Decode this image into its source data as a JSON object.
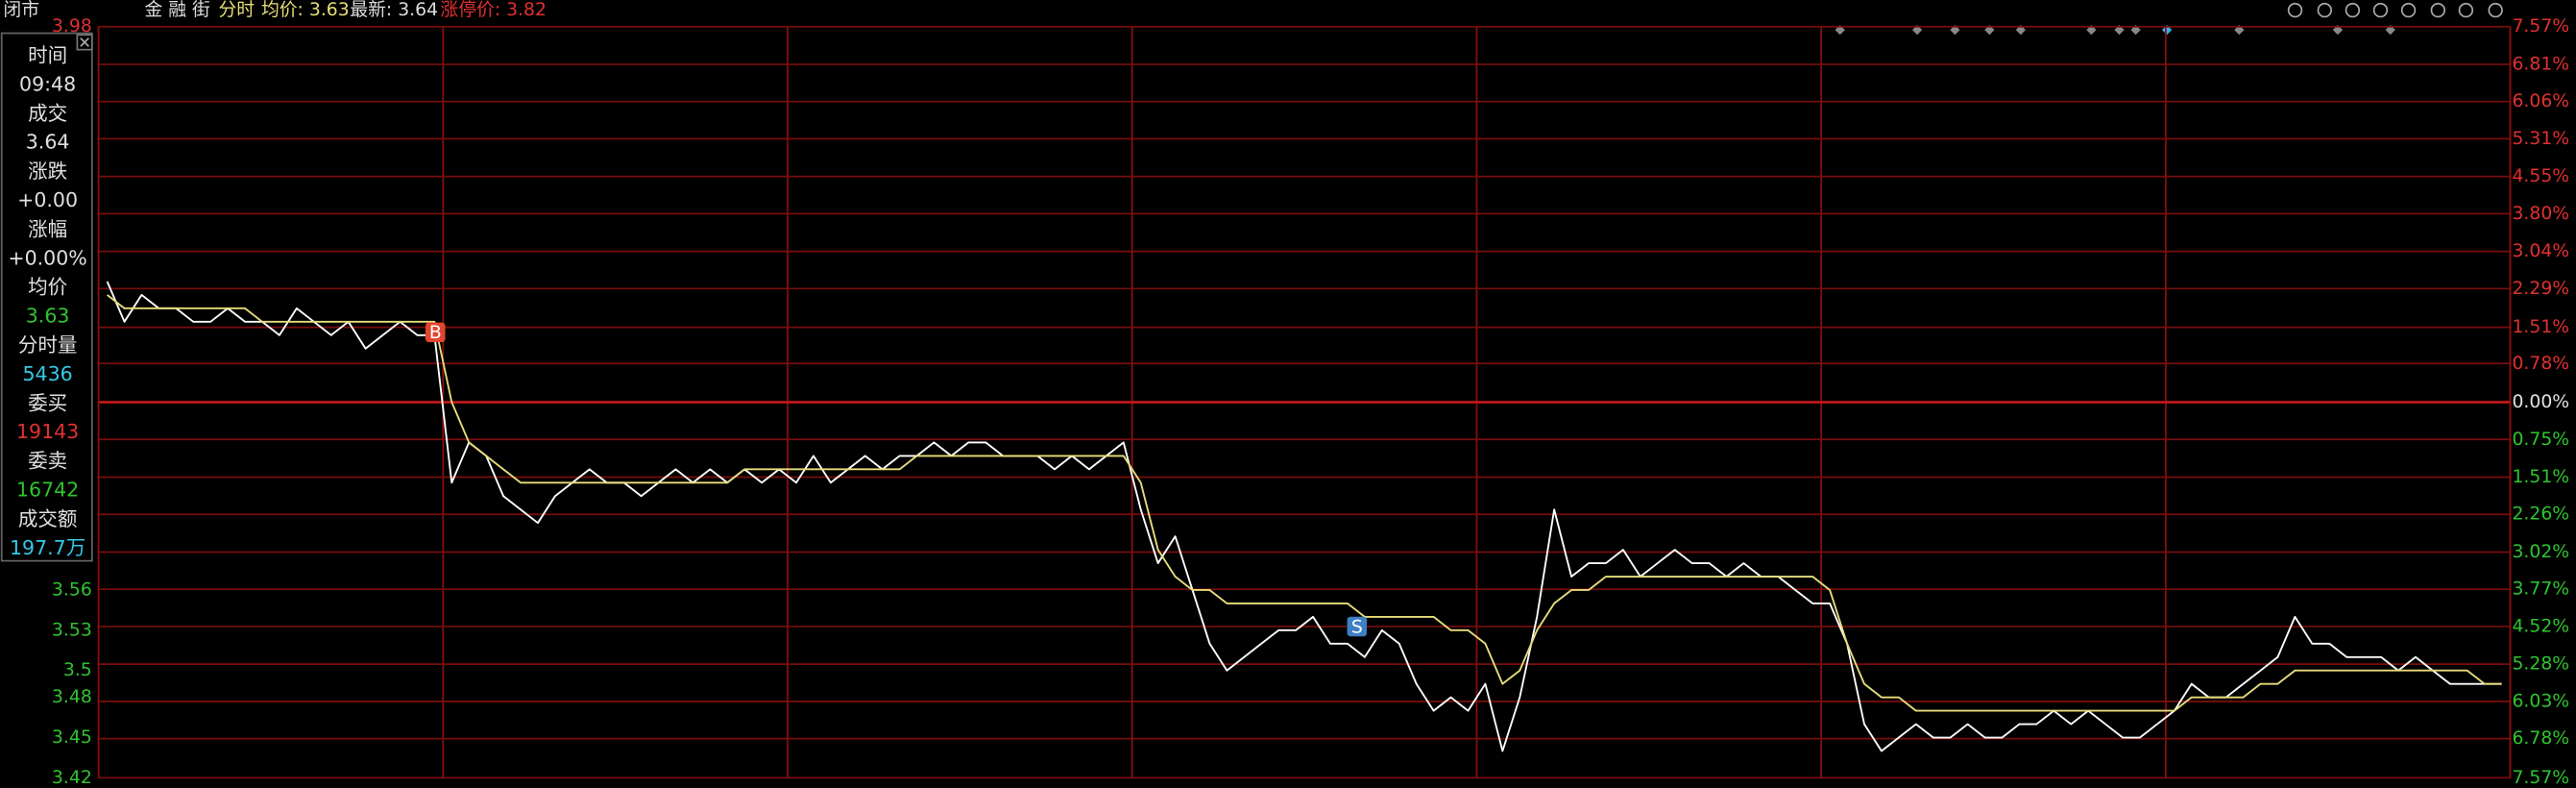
{
  "header": {
    "status": "闭市",
    "name": "金 融 街",
    "mode": "分时",
    "avg": "均价: 3.63",
    "last": "最新: 3.64",
    "limit_up": "涨停价: 3.82"
  },
  "panel": {
    "items": [
      {
        "label": "时间",
        "value": "09:48"
      },
      {
        "label": "成交",
        "value": "3.64"
      },
      {
        "label": "涨跌",
        "value": "+0.00"
      },
      {
        "label": "涨幅",
        "value": "+0.00%"
      },
      {
        "label": "均价",
        "value": "3.63"
      },
      {
        "label": "分时量",
        "value": "5436"
      },
      {
        "label": "委买",
        "value": "19143"
      },
      {
        "label": "委卖",
        "value": "16742"
      },
      {
        "label": "成交额",
        "value": "197.7万"
      }
    ]
  },
  "annotations": [
    "B",
    "S"
  ],
  "chart_data": {
    "type": "line",
    "ylim": [
      3.42,
      3.98
    ],
    "yticks": [
      3.98,
      3.56,
      3.53,
      3.5,
      3.48,
      3.45,
      3.42
    ],
    "y2lim": [
      -7.57,
      7.57
    ],
    "y2ticks": [
      {
        "value": 7.57,
        "label": "7.57%"
      },
      {
        "value": 6.81,
        "label": "6.81%"
      },
      {
        "value": 6.06,
        "label": "6.06%"
      },
      {
        "value": 5.31,
        "label": "5.31%"
      },
      {
        "value": 4.55,
        "label": "4.55%"
      },
      {
        "value": 3.8,
        "label": "3.80%"
      },
      {
        "value": 3.04,
        "label": "3.04%"
      },
      {
        "value": 2.29,
        "label": "2.29%"
      },
      {
        "value": 1.51,
        "label": "1.51%"
      },
      {
        "value": 0.78,
        "label": "0.78%"
      },
      {
        "value": 0,
        "label": "0.00%"
      },
      {
        "value": -0.75,
        "label": "0.75%"
      },
      {
        "value": -1.51,
        "label": "1.51%"
      },
      {
        "value": -2.26,
        "label": "2.26%"
      },
      {
        "value": -3.02,
        "label": "3.02%"
      },
      {
        "value": -3.77,
        "label": "3.77%"
      },
      {
        "value": -4.52,
        "label": "4.52%"
      },
      {
        "value": -5.28,
        "label": "5.28%"
      },
      {
        "value": -6.03,
        "label": "6.03%"
      },
      {
        "value": -6.78,
        "label": "6.78%"
      },
      {
        "value": -7.57,
        "label": "7.57%"
      }
    ],
    "grid": true,
    "series": [
      {
        "color": "#ffffff",
        "values": [
          3.79,
          3.76,
          3.78,
          3.77,
          3.77,
          3.76,
          3.76,
          3.77,
          3.76,
          3.76,
          3.75,
          3.77,
          3.76,
          3.75,
          3.76,
          3.74,
          3.75,
          3.76,
          3.75,
          3.75,
          3.64,
          3.67,
          3.66,
          3.63,
          3.62,
          3.61,
          3.63,
          3.64,
          3.65,
          3.64,
          3.64,
          3.63,
          3.64,
          3.65,
          3.64,
          3.65,
          3.64,
          3.65,
          3.64,
          3.65,
          3.64,
          3.66,
          3.64,
          3.65,
          3.66,
          3.65,
          3.66,
          3.66,
          3.67,
          3.66,
          3.67,
          3.67,
          3.66,
          3.66,
          3.66,
          3.65,
          3.66,
          3.65,
          3.66,
          3.67,
          3.62,
          3.58,
          3.6,
          3.56,
          3.52,
          3.5,
          3.51,
          3.52,
          3.53,
          3.53,
          3.54,
          3.52,
          3.52,
          3.51,
          3.53,
          3.52,
          3.49,
          3.47,
          3.48,
          3.47,
          3.49,
          3.44,
          3.48,
          3.54,
          3.62,
          3.57,
          3.58,
          3.58,
          3.59,
          3.57,
          3.58,
          3.59,
          3.58,
          3.58,
          3.57,
          3.58,
          3.57,
          3.57,
          3.56,
          3.55,
          3.55,
          3.52,
          3.46,
          3.44,
          3.45,
          3.46,
          3.45,
          3.45,
          3.46,
          3.45,
          3.45,
          3.46,
          3.46,
          3.47,
          3.46,
          3.47,
          3.46,
          3.45,
          3.45,
          3.46,
          3.47,
          3.49,
          3.48,
          3.48,
          3.49,
          3.5,
          3.51,
          3.54,
          3.52,
          3.52,
          3.51,
          3.51,
          3.51,
          3.5,
          3.51,
          3.5,
          3.49,
          3.49,
          3.49,
          3.49
        ]
      },
      {
        "color": "#e6dd7a",
        "values": [
          3.78,
          3.77,
          3.77,
          3.77,
          3.77,
          3.77,
          3.77,
          3.77,
          3.77,
          3.76,
          3.76,
          3.76,
          3.76,
          3.76,
          3.76,
          3.76,
          3.76,
          3.76,
          3.76,
          3.76,
          3.7,
          3.67,
          3.66,
          3.65,
          3.64,
          3.64,
          3.64,
          3.64,
          3.64,
          3.64,
          3.64,
          3.64,
          3.64,
          3.64,
          3.64,
          3.64,
          3.64,
          3.65,
          3.65,
          3.65,
          3.65,
          3.65,
          3.65,
          3.65,
          3.65,
          3.65,
          3.65,
          3.66,
          3.66,
          3.66,
          3.66,
          3.66,
          3.66,
          3.66,
          3.66,
          3.66,
          3.66,
          3.66,
          3.66,
          3.66,
          3.64,
          3.59,
          3.57,
          3.56,
          3.56,
          3.55,
          3.55,
          3.55,
          3.55,
          3.55,
          3.55,
          3.55,
          3.55,
          3.54,
          3.54,
          3.54,
          3.54,
          3.54,
          3.53,
          3.53,
          3.52,
          3.49,
          3.5,
          3.53,
          3.55,
          3.56,
          3.56,
          3.57,
          3.57,
          3.57,
          3.57,
          3.57,
          3.57,
          3.57,
          3.57,
          3.57,
          3.57,
          3.57,
          3.57,
          3.57,
          3.56,
          3.52,
          3.49,
          3.48,
          3.48,
          3.47,
          3.47,
          3.47,
          3.47,
          3.47,
          3.47,
          3.47,
          3.47,
          3.47,
          3.47,
          3.47,
          3.47,
          3.47,
          3.47,
          3.47,
          3.47,
          3.48,
          3.48,
          3.48,
          3.48,
          3.49,
          3.49,
          3.5,
          3.5,
          3.5,
          3.5,
          3.5,
          3.5,
          3.5,
          3.5,
          3.5,
          3.5,
          3.5,
          3.49,
          3.49
        ]
      }
    ]
  }
}
